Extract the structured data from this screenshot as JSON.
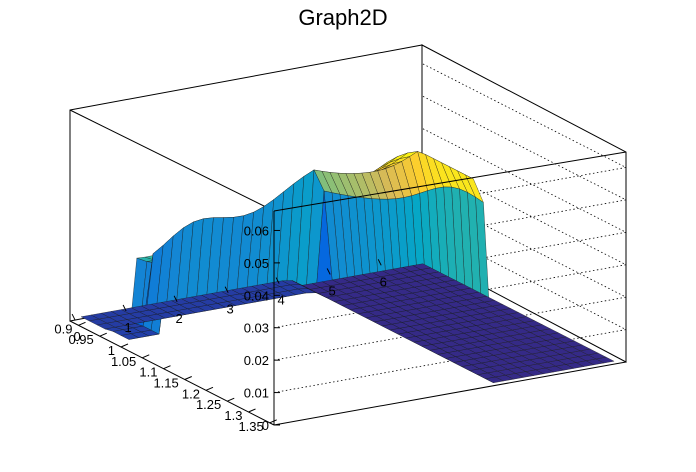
{
  "chart_data": {
    "type": "surface",
    "title": "Graph2D",
    "x_ticks": [
      "0",
      "1",
      "2",
      "3",
      "4",
      "5",
      "6"
    ],
    "y_ticks": [
      "0.9",
      "0.95",
      "1",
      "1.05",
      "1.1",
      "1.15",
      "1.2",
      "1.25",
      "1.3",
      "1.35"
    ],
    "z_ticks": [
      "0",
      "0.01",
      "0.02",
      "0.03",
      "0.04",
      "0.05",
      "0.06"
    ],
    "xlim": [
      -0.1,
      6.8
    ],
    "ylim": [
      0.88,
      1.36
    ],
    "zlim": [
      0,
      0.066
    ],
    "grid": true,
    "colormap": [
      "#352a87",
      "#0363e1",
      "#1485d4",
      "#06a7c6",
      "#38b99e",
      "#92bf73",
      "#d9ba56",
      "#fcce2e",
      "#f9fb0e"
    ]
  }
}
